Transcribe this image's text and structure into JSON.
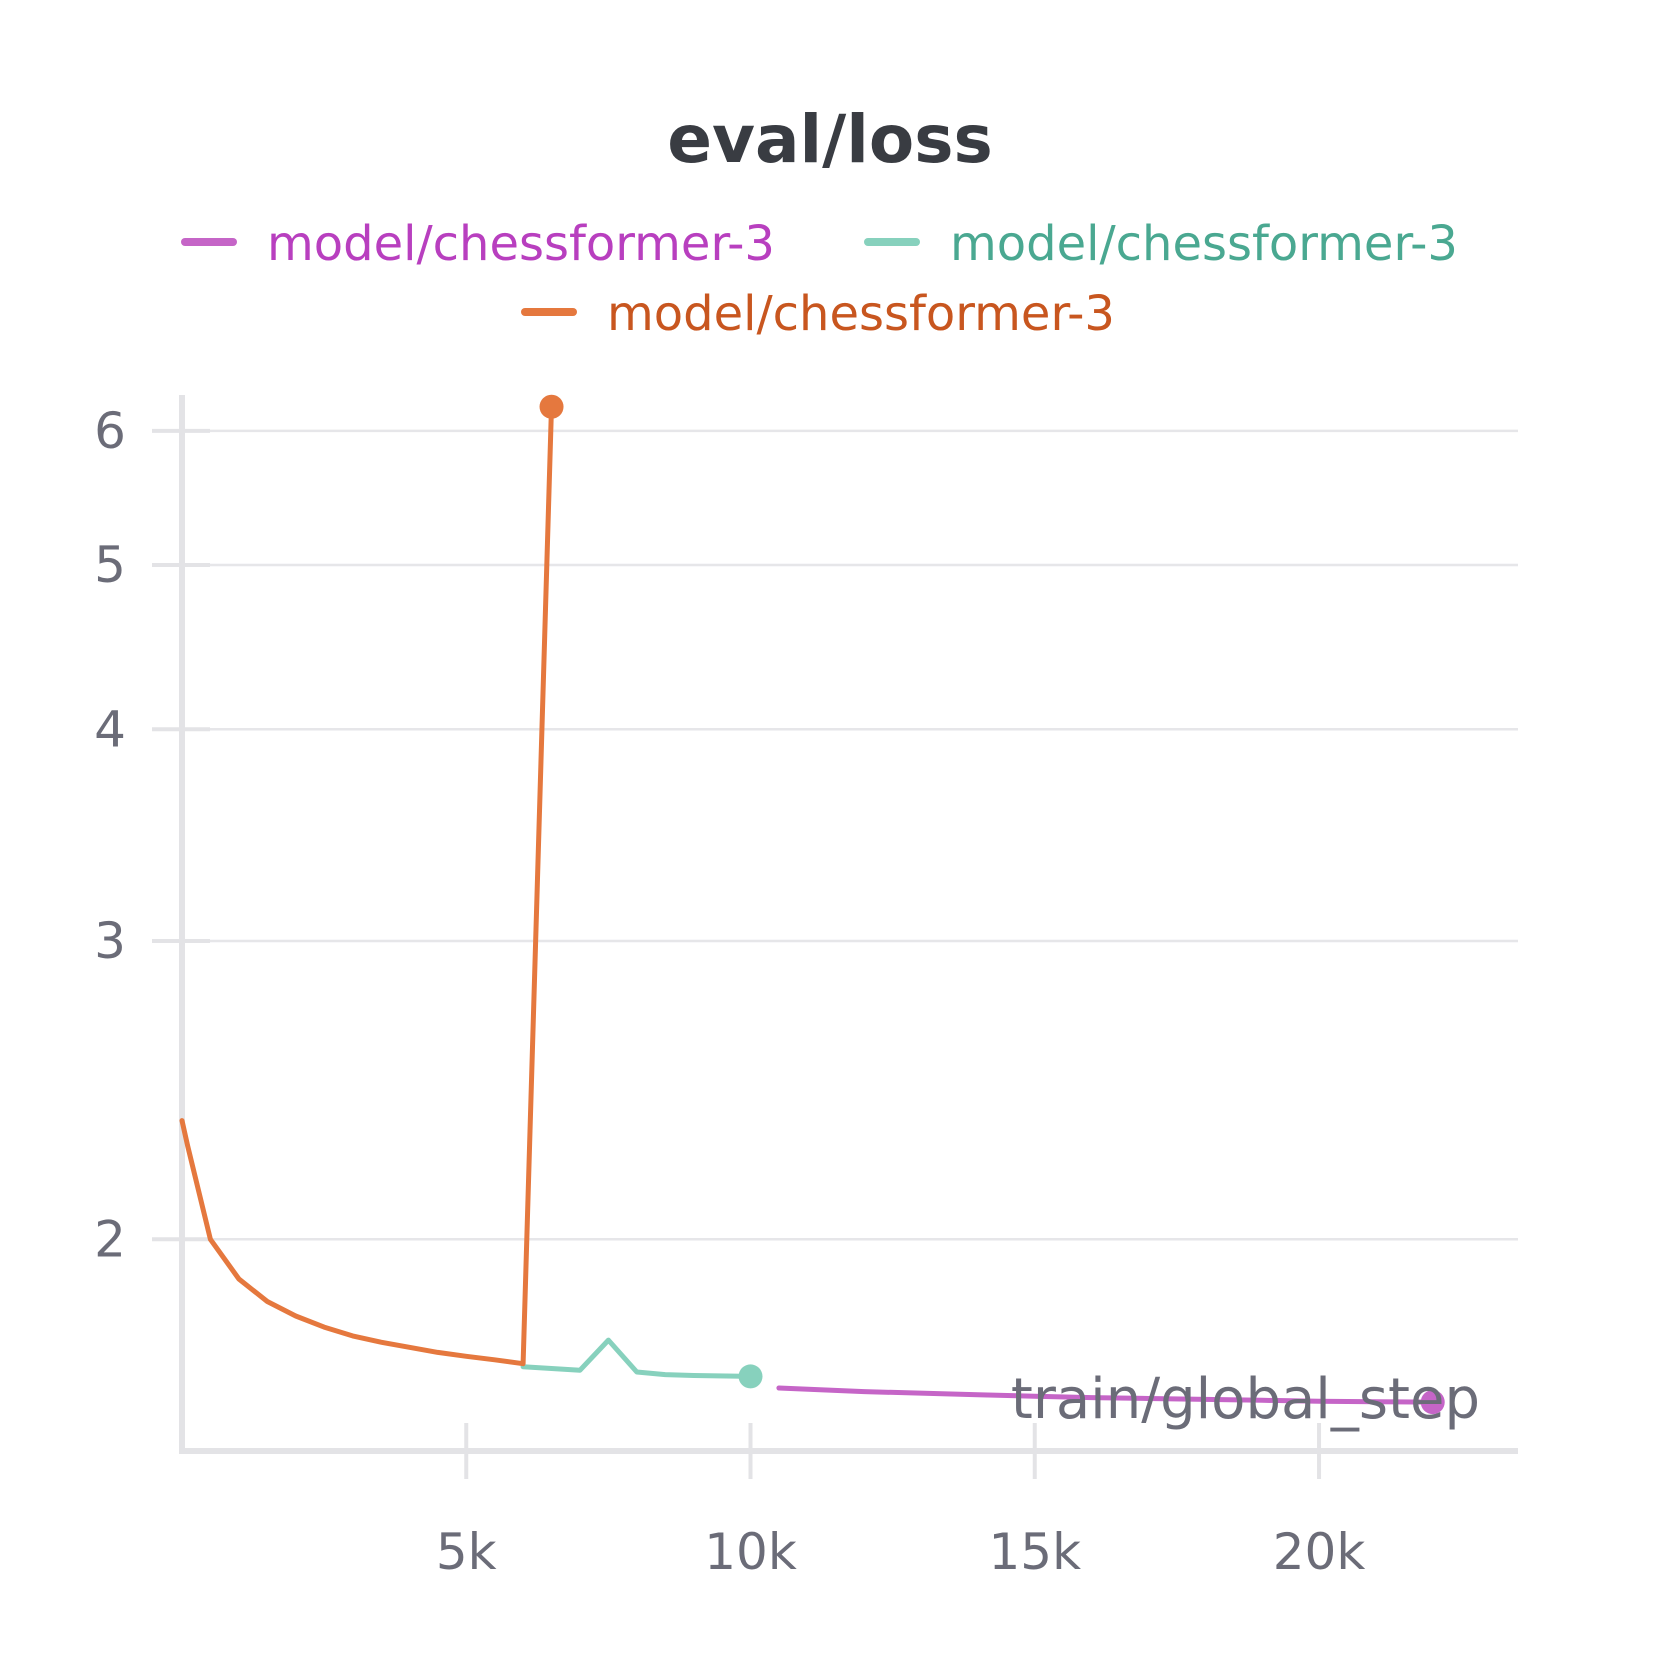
{
  "chart_data": {
    "type": "line",
    "title": "eval/loss",
    "xlabel": "train/global_step",
    "ylabel": "",
    "yscale": "log",
    "xlim": [
      0,
      23500
    ],
    "ylim": [
      1.5,
      6.3
    ],
    "x_ticks": [
      5000,
      10000,
      15000,
      20000
    ],
    "x_tick_labels": [
      "5k",
      "10k",
      "15k",
      "20k"
    ],
    "y_ticks": [
      2,
      3,
      4,
      5,
      6
    ],
    "y_tick_labels": [
      "2",
      "3",
      "4",
      "5",
      "6"
    ],
    "grid": true,
    "legend_position": "top",
    "series": [
      {
        "name": "model/chessformer-3",
        "color": "#c565c7",
        "legend_text_color": "#b83fbf",
        "end_marker": true,
        "points": [
          [
            10500,
            1.634
          ],
          [
            12000,
            1.626
          ],
          [
            14000,
            1.619
          ],
          [
            15000,
            1.616
          ],
          [
            16000,
            1.613
          ],
          [
            17000,
            1.611
          ],
          [
            18000,
            1.609
          ],
          [
            19000,
            1.607
          ],
          [
            20000,
            1.605
          ],
          [
            21000,
            1.604
          ],
          [
            22000,
            1.603
          ]
        ]
      },
      {
        "name": "model/chessformer-3",
        "color": "#87d1bd",
        "legend_text_color": "#4aa891",
        "end_marker": true,
        "points": [
          [
            6000,
            1.682
          ],
          [
            7000,
            1.674
          ],
          [
            7500,
            1.744
          ],
          [
            8000,
            1.67
          ],
          [
            8500,
            1.664
          ],
          [
            9000,
            1.662
          ],
          [
            10000,
            1.66
          ]
        ]
      },
      {
        "name": "model/chessformer-3",
        "color": "#e5783e",
        "legend_text_color": "#c8561f",
        "end_marker": true,
        "points": [
          [
            0,
            2.35
          ],
          [
            100,
            2.27
          ],
          [
            500,
            2.0
          ],
          [
            1000,
            1.895
          ],
          [
            1500,
            1.838
          ],
          [
            2000,
            1.802
          ],
          [
            2500,
            1.775
          ],
          [
            3000,
            1.754
          ],
          [
            3500,
            1.739
          ],
          [
            4000,
            1.727
          ],
          [
            4500,
            1.715
          ],
          [
            5000,
            1.706
          ],
          [
            5500,
            1.698
          ],
          [
            6000,
            1.689
          ],
          [
            6500,
            6.2
          ]
        ]
      }
    ]
  }
}
